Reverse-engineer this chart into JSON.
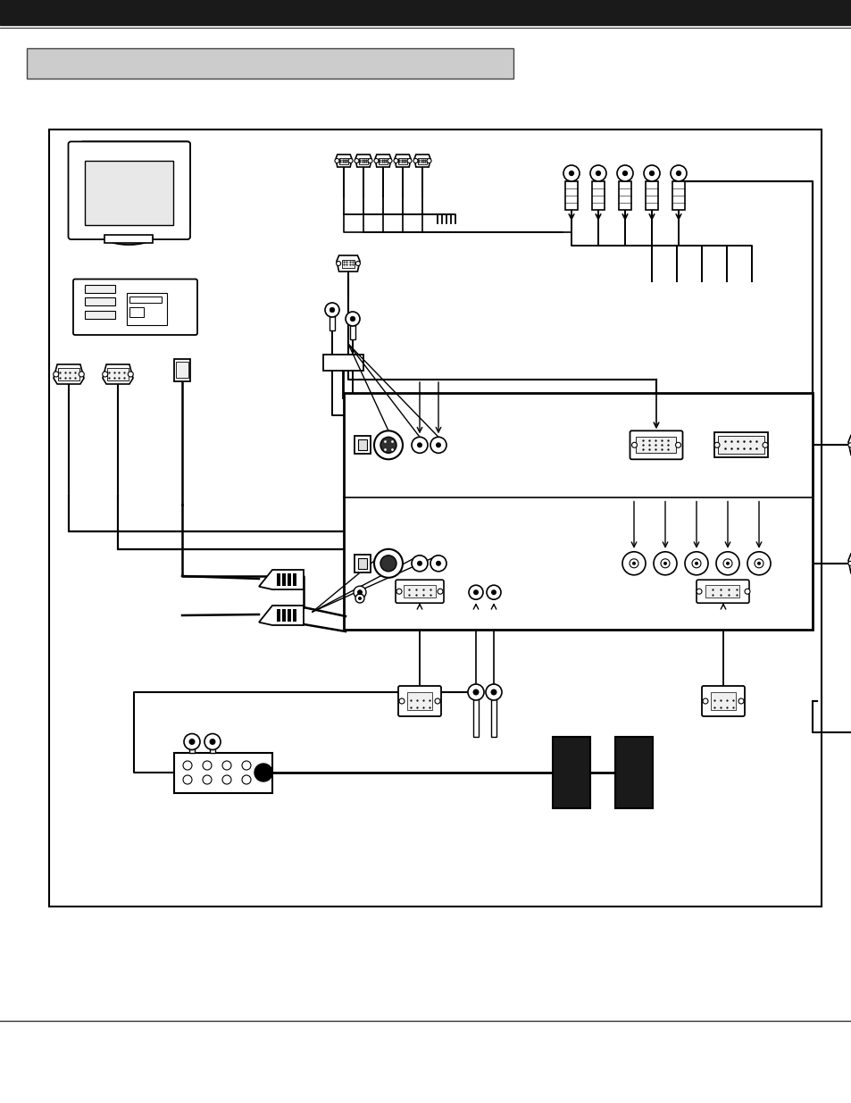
{
  "page_bg": "#ffffff",
  "header_bar_color": "#1a1a1a",
  "section_bar_color": "#cccccc",
  "section_bar_edge": "#444444",
  "diagram_border": "#000000",
  "line_color": "#000000",
  "comp_color": "#ffffff",
  "comp_edge": "#000000"
}
